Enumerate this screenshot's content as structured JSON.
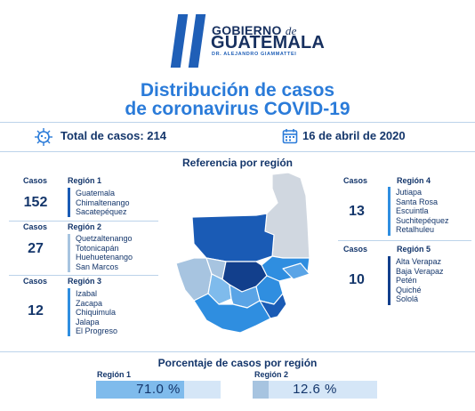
{
  "header": {
    "logo_line1": "GOBIERNO",
    "logo_de": "de",
    "logo_line2": "GUATEMALA",
    "logo_sub": "DR. ALEJANDRO GIAMMATTEI",
    "title_line1": "Distribución de casos",
    "title_line2": "de coronavirus COVID-19"
  },
  "summary": {
    "total_label": "Total de casos: 214",
    "date_label": "16 de abril de 2020"
  },
  "map_heading": "Referencia por región",
  "regions": [
    {
      "cases_label": "Casos",
      "cases": "152",
      "name": "Región 1",
      "color": "#1a5bb5",
      "departments": [
        "Guatemala",
        "Chimaltenango",
        "Sacatepéquez"
      ]
    },
    {
      "cases_label": "Casos",
      "cases": "27",
      "name": "Región 2",
      "color": "#a7c4e0",
      "departments": [
        "Quetzaltenango",
        "Totonicapán",
        "Huehuetenango",
        "San Marcos"
      ]
    },
    {
      "cases_label": "Casos",
      "cases": "12",
      "name": "Región 3",
      "color": "#2f8ee0",
      "departments": [
        "Izabal",
        "Zacapa",
        "Chiquimula",
        "Jalapa",
        "El Progreso"
      ]
    },
    {
      "cases_label": "Casos",
      "cases": "13",
      "name": "Región 4",
      "color": "#2f8ee0",
      "departments": [
        "Jutiapa",
        "Santa Rosa",
        "Escuintla",
        "Suchitepéquez",
        "Retalhuleu"
      ]
    },
    {
      "cases_label": "Casos",
      "cases": "10",
      "name": "Región 5",
      "color": "#123f8c",
      "departments": [
        "Alta Verapaz",
        "Baja Verapaz",
        "Petén",
        "Quiché",
        "Sololá"
      ]
    }
  ],
  "percent_heading": "Porcentaje de casos por región",
  "percentages": [
    {
      "label": "Región 1",
      "value": 71.0,
      "text": "71.0 %",
      "color": "#7fbbec"
    },
    {
      "label": "Región 2",
      "value": 12.6,
      "text": "12.6 %",
      "color": "#a7c4e0"
    }
  ]
}
